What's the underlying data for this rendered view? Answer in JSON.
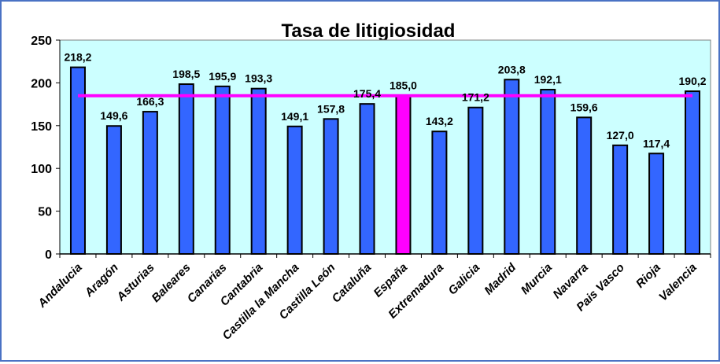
{
  "chart_data": {
    "type": "bar",
    "title": "Tasa de litigiosidad",
    "xlabel": "",
    "ylabel": "",
    "ylim": [
      0,
      250
    ],
    "yticks": [
      "0",
      "50",
      "100",
      "150",
      "200",
      "250"
    ],
    "categories": [
      "Andalucia",
      "Aragón",
      "Asturias",
      "Baleares",
      "Canarias",
      "Cantabria",
      "Castilla la Mancha",
      "Castilla León",
      "Cataluña",
      "España",
      "Extremadura",
      "Galicia",
      "Madrid",
      "Murcia",
      "Navarra",
      "Pais Vasco",
      "Rioja",
      "Valencia"
    ],
    "values": [
      218.2,
      149.6,
      166.3,
      198.5,
      195.9,
      193.3,
      149.1,
      157.8,
      175.4,
      185.0,
      143.2,
      171.2,
      203.8,
      192.1,
      159.6,
      127.0,
      117.4,
      190.2
    ],
    "data_labels": [
      "218,2",
      "149,6",
      "166,3",
      "198,5",
      "195,9",
      "193,3",
      "149,1",
      "157,8",
      "175,4",
      "185,0",
      "143,2",
      "171,2",
      "203,8",
      "192,1",
      "159,6",
      "127,0",
      "117,4",
      "190,2"
    ],
    "highlight_category": "España",
    "reference_line": {
      "name": "España",
      "value": 185.0
    },
    "colors": {
      "bar": "#3366ff",
      "highlight": "#ff00ff",
      "line": "#ff00ff",
      "plot_bg": "#ccffff"
    },
    "grid": false,
    "legend": "none"
  }
}
